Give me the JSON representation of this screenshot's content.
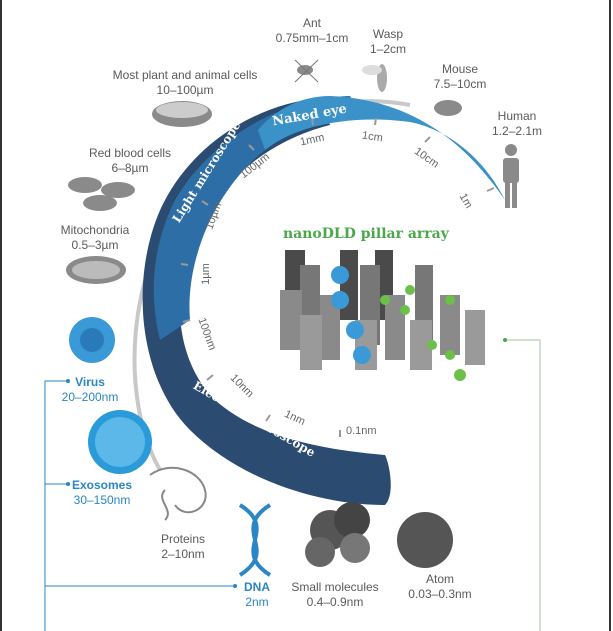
{
  "organisms": [
    {
      "name": "Ant",
      "size": "0.75mm–1cm"
    },
    {
      "name": "Wasp",
      "size": "1–2cm"
    },
    {
      "name": "Mouse",
      "size": "7.5–10cm"
    },
    {
      "name": "Human",
      "size": "1.2–2.1m"
    },
    {
      "name": "Most plant and animal cells",
      "size": "10–100µm"
    },
    {
      "name": "Red blood cells",
      "size": "6–8µm"
    },
    {
      "name": "Mitochondria",
      "size": "0.5–3µm"
    },
    {
      "name": "Virus",
      "size": "20–200nm"
    },
    {
      "name": "Exosomes",
      "size": "30–150nm"
    },
    {
      "name": "Proteins",
      "size": "2–10nm"
    },
    {
      "name": "DNA",
      "size": "2nm"
    },
    {
      "name": "Small molecules",
      "size": "0.4–0.9nm"
    },
    {
      "name": "Atom",
      "size": "0.03–0.3nm"
    }
  ],
  "scale_ticks": [
    "1m",
    "10cm",
    "1cm",
    "1mm",
    "100µm",
    "10µm",
    "1µm",
    "100nm",
    "10nm",
    "1nm",
    "0.1nm"
  ],
  "bands": {
    "naked_eye": "Naked eye",
    "light": "Light microscope",
    "electron": "Electron microscope"
  },
  "pillar_title": "nanoDLD pillar array",
  "colors": {
    "electron": "#2b4b70",
    "light": "#2e6ea6",
    "naked_eye": "#3a92c8",
    "accent_green": "#4aa84a",
    "label_blue": "#2a86c4"
  }
}
